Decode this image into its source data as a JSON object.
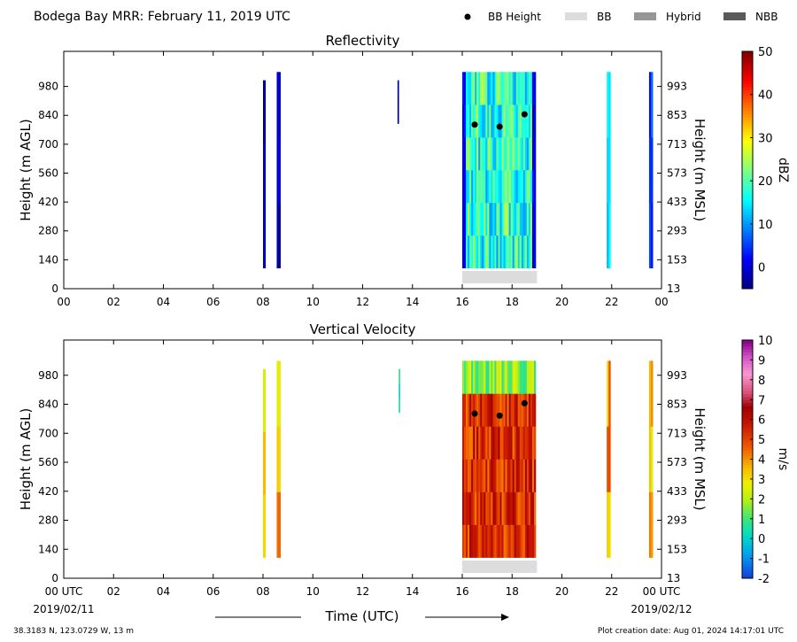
{
  "header": {
    "title": "Bodega Bay MRR:  February 11, 2019 UTC",
    "legend": [
      {
        "label": "BB Height",
        "kind": "marker",
        "color": "#000000"
      },
      {
        "label": "BB",
        "kind": "patch",
        "color": "#dcdcdc"
      },
      {
        "label": "Hybrid",
        "kind": "patch",
        "color": "#969696"
      },
      {
        "label": "NBB",
        "kind": "patch",
        "color": "#595959"
      }
    ]
  },
  "footer": {
    "location": "38.3183 N, 123.0729 W, 13 m",
    "creation": "Plot creation date: Aug 01, 2024 14:17:01 UTC",
    "xlabel": "Time (UTC)",
    "date_start": "2019/02/11",
    "date_end": "2019/02/12"
  },
  "chart_data": [
    {
      "type": "heatmap",
      "title": "Reflectivity",
      "ylabel": "Height (m AGL)",
      "ylabel_right": "Height (m MSL)",
      "xlim": [
        0,
        24
      ],
      "ylim": [
        0,
        1150
      ],
      "x_ticks": [
        "00",
        "02",
        "04",
        "06",
        "08",
        "10",
        "12",
        "14",
        "16",
        "18",
        "20",
        "22",
        "00"
      ],
      "y_ticks": [
        0,
        140,
        280,
        420,
        560,
        700,
        840,
        980
      ],
      "y_ticks_right": [
        13,
        153,
        293,
        433,
        573,
        713,
        853,
        993
      ],
      "colorbar": {
        "label": "dBZ",
        "vmin": -5,
        "vmax": 50,
        "ticks": [
          0,
          10,
          20,
          30,
          40,
          50
        ],
        "colormap": "jet"
      },
      "echo_regions": [
        {
          "x0": 8.0,
          "x1": 8.1,
          "y0": 100,
          "y1": 1010,
          "value": -2
        },
        {
          "x0": 8.55,
          "x1": 8.7,
          "y0": 100,
          "y1": 1050,
          "value": -1
        },
        {
          "x0": 13.4,
          "x1": 13.45,
          "y0": 800,
          "y1": 1010,
          "value": -2
        },
        {
          "x0": 16.0,
          "x1": 18.95,
          "y0": 100,
          "y1": 1050,
          "value": 18
        },
        {
          "x0": 21.8,
          "x1": 21.95,
          "y0": 100,
          "y1": 1050,
          "value": 14
        },
        {
          "x0": 23.5,
          "x1": 23.65,
          "y0": 100,
          "y1": 1050,
          "value": 5
        }
      ],
      "bb_height_points": [
        {
          "x": 16.5,
          "y": 795
        },
        {
          "x": 17.5,
          "y": 785
        },
        {
          "x": 18.5,
          "y": 845
        }
      ],
      "bb_type_bars": [
        {
          "x0": 16.0,
          "x1": 19.0,
          "type": "BB"
        }
      ]
    },
    {
      "type": "heatmap",
      "title": "Vertical Velocity",
      "ylabel": "Height (m AGL)",
      "ylabel_right": "Height (m MSL)",
      "xlim": [
        0,
        24
      ],
      "ylim": [
        0,
        1150
      ],
      "x_ticks": [
        "00 UTC",
        "02",
        "04",
        "06",
        "08",
        "10",
        "12",
        "14",
        "16",
        "18",
        "20",
        "22",
        "00 UTC"
      ],
      "y_ticks": [
        0,
        140,
        280,
        420,
        560,
        700,
        840,
        980
      ],
      "y_ticks_right": [
        13,
        153,
        293,
        433,
        573,
        713,
        853,
        993
      ],
      "colorbar": {
        "label": "m/s",
        "vmin": -2,
        "vmax": 10,
        "ticks": [
          -2,
          -1,
          0,
          1,
          2,
          3,
          4,
          5,
          6,
          7,
          8,
          9,
          10
        ]
      },
      "echo_regions": [
        {
          "x0": 8.0,
          "x1": 8.1,
          "y0": 100,
          "y1": 1010,
          "value": 2.5
        },
        {
          "x0": 8.55,
          "x1": 8.7,
          "y0": 100,
          "y1": 1050,
          "value": 3.5
        },
        {
          "x0": 13.45,
          "x1": 13.5,
          "y0": 800,
          "y1": 1010,
          "value": 1.2
        },
        {
          "x0": 16.0,
          "x1": 18.95,
          "y0": 100,
          "y1": 1050,
          "value": 5.5
        },
        {
          "x0": 21.8,
          "x1": 21.95,
          "y0": 100,
          "y1": 1050,
          "value": 4.0
        },
        {
          "x0": 23.5,
          "x1": 23.65,
          "y0": 100,
          "y1": 1050,
          "value": 3.5
        }
      ],
      "bb_height_points": [
        {
          "x": 16.5,
          "y": 795
        },
        {
          "x": 17.5,
          "y": 785
        },
        {
          "x": 18.5,
          "y": 845
        }
      ],
      "bb_type_bars": [
        {
          "x0": 16.0,
          "x1": 19.0,
          "type": "BB"
        }
      ]
    }
  ]
}
